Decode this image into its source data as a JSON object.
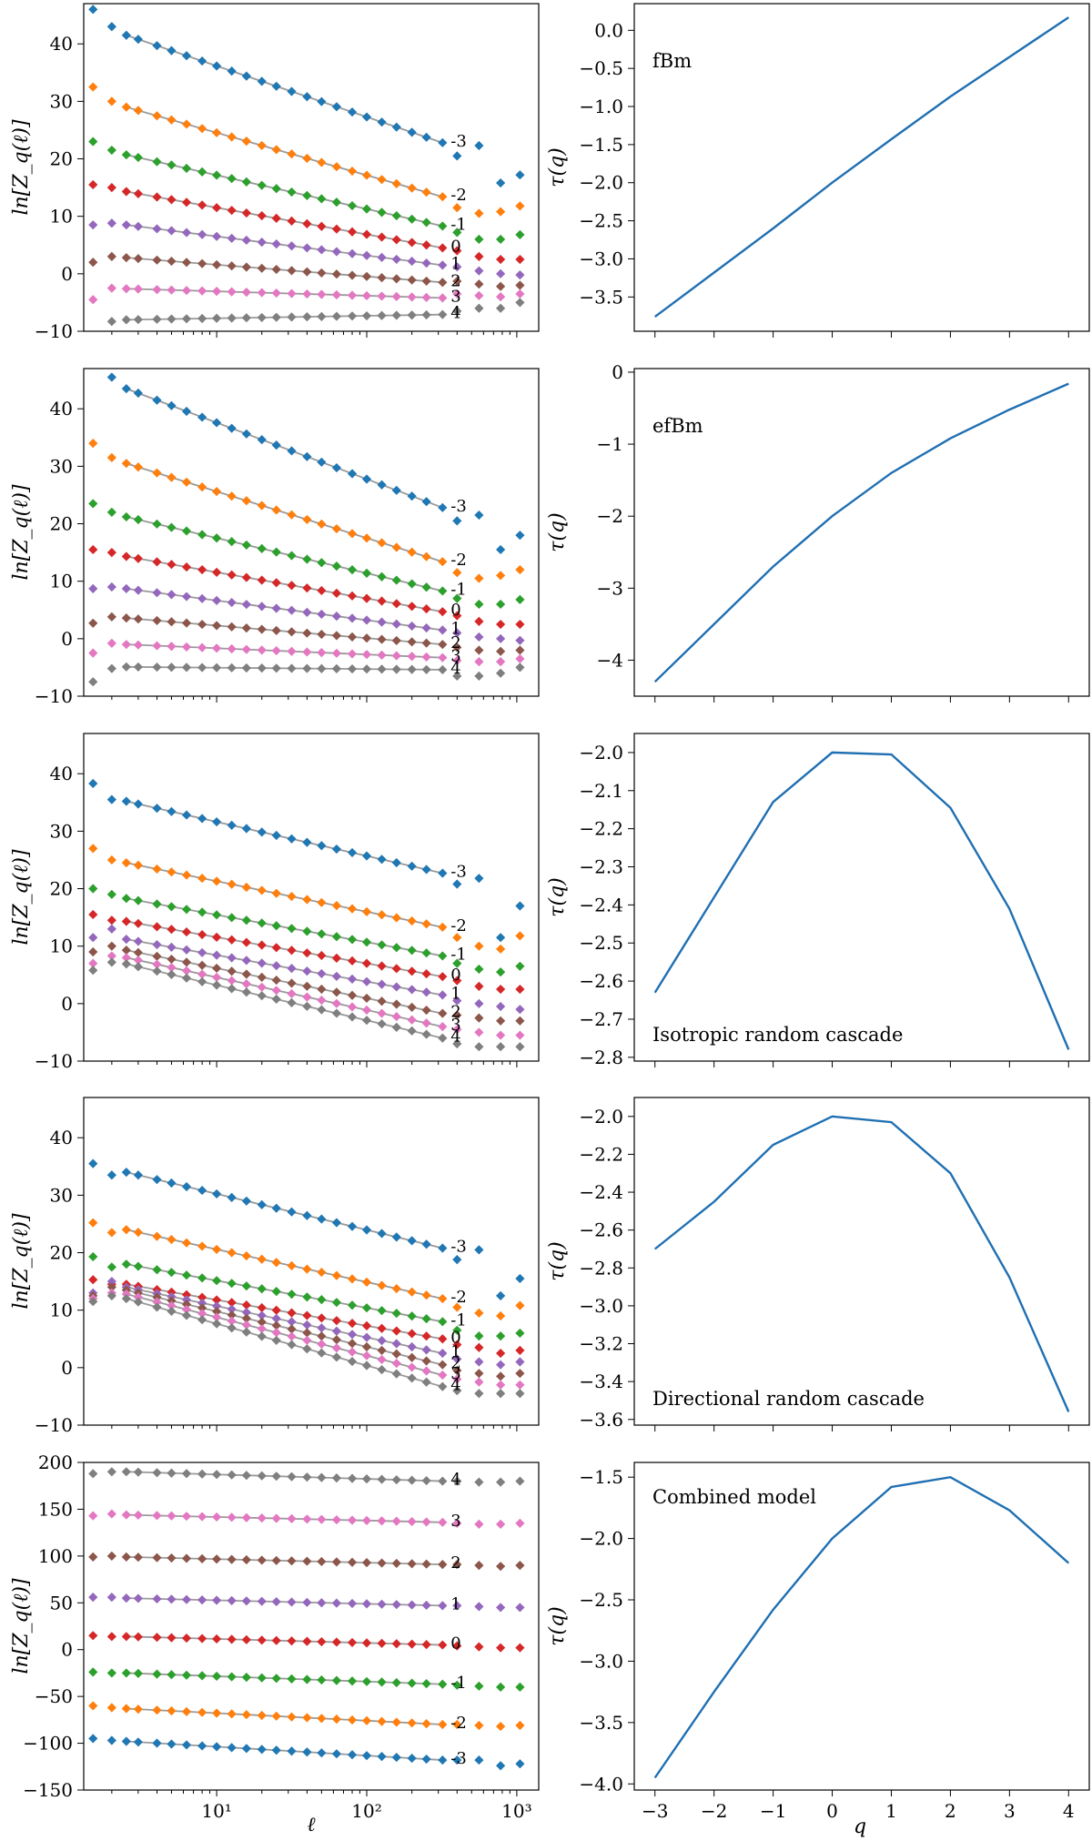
{
  "figure": {
    "x_label_left": "ℓ",
    "x_label_right": "q",
    "y_label_left": "ln[Z_q(ℓ)]",
    "y_label_right": "τ(q)"
  },
  "colors": {
    "series": [
      "#1f77b4",
      "#ff7f0e",
      "#2ca02c",
      "#d62728",
      "#9467bd",
      "#8c564b",
      "#e377c2",
      "#7f7f7f"
    ],
    "fit": "#999999",
    "line": "#1f6fb2"
  },
  "chart_data": [
    {
      "type": "scatter",
      "panel": "left-1",
      "xscale": "log",
      "xlim": [
        1.3,
        1400
      ],
      "ylim": [
        -10,
        47
      ],
      "yticks": [
        -10,
        0,
        10,
        20,
        30,
        40
      ],
      "ytick_labels": [
        "−10",
        "0",
        "10",
        "20",
        "30",
        "40"
      ],
      "xticks_shown": false,
      "fit_range": [
        2.5,
        320
      ],
      "q_values": [
        -3,
        -2,
        -1,
        0,
        1,
        2,
        3,
        4
      ],
      "q_labels": [
        "-3",
        "-2",
        "-1",
        "0",
        "1",
        "2",
        "3",
        "4"
      ],
      "series": [
        {
          "q": -3,
          "start": 46,
          "second": 43,
          "fit_start": 41.5,
          "fit_end": 22.8,
          "tail": [
            20.5,
            22.3,
            15.8,
            17.2
          ]
        },
        {
          "q": -2,
          "start": 32.5,
          "second": 30,
          "fit_start": 29,
          "fit_end": 13.4,
          "tail": [
            11.5,
            10.5,
            10.8,
            11.8
          ]
        },
        {
          "q": -1,
          "start": 23,
          "second": 21.5,
          "fit_start": 20.7,
          "fit_end": 8.3,
          "tail": [
            7.2,
            6.0,
            6.0,
            6.8
          ]
        },
        {
          "q": 0,
          "start": 15.5,
          "second": 15,
          "fit_start": 14.3,
          "fit_end": 4.5,
          "tail": [
            4.0,
            3.0,
            2.5,
            2.5
          ]
        },
        {
          "q": 1,
          "start": 8.5,
          "second": 8.8,
          "fit_start": 8.5,
          "fit_end": 1.5,
          "tail": [
            1.2,
            0.5,
            0.0,
            -0.2
          ]
        },
        {
          "q": 2,
          "start": 2,
          "second": 3,
          "fit_start": 2.8,
          "fit_end": -1.5,
          "tail": [
            -1.3,
            -1.8,
            -2.2,
            -2.0
          ]
        },
        {
          "q": 3,
          "start": -4.5,
          "second": -2.5,
          "fit_start": -2.6,
          "fit_end": -4.2,
          "tail": [
            -3.5,
            -3.8,
            -4.0,
            -3.5
          ]
        },
        {
          "q": 4,
          "start": null,
          "second": -8.3,
          "fit_start": -8.0,
          "fit_end": -7.1,
          "tail": [
            -6.5,
            -6.0,
            -6.0,
            -5.0
          ]
        }
      ]
    },
    {
      "type": "line",
      "panel": "right-1",
      "annotation": "fBm",
      "x": [
        -3,
        -2,
        -1,
        0,
        1,
        2,
        3,
        4
      ],
      "y": [
        -3.76,
        -3.18,
        -2.6,
        -2.0,
        -1.43,
        -0.87,
        -0.35,
        0.17
      ],
      "xlim": [
        -3.35,
        4.35
      ],
      "ylim": [
        -3.95,
        0.35
      ],
      "yticks": [
        -3.5,
        -3.0,
        -2.5,
        -2.0,
        -1.5,
        -1.0,
        -0.5,
        0.0
      ],
      "ytick_labels": [
        "−3.5",
        "−3.0",
        "−2.5",
        "−2.0",
        "−1.5",
        "−1.0",
        "−0.5",
        "0.0"
      ]
    },
    {
      "type": "scatter",
      "panel": "left-2",
      "xscale": "log",
      "xlim": [
        1.3,
        1400
      ],
      "ylim": [
        -10,
        47
      ],
      "yticks": [
        -10,
        0,
        10,
        20,
        30,
        40
      ],
      "ytick_labels": [
        "−10",
        "0",
        "10",
        "20",
        "30",
        "40"
      ],
      "xticks_shown": false,
      "fit_range": [
        2.5,
        320
      ],
      "q_values": [
        -3,
        -2,
        -1,
        0,
        1,
        2,
        3,
        4
      ],
      "q_labels": [
        "-3",
        "-2",
        "-1",
        "0",
        "1",
        "2",
        "3",
        "4"
      ],
      "series": [
        {
          "q": -3,
          "start": null,
          "second": 45.5,
          "fit_start": 43.5,
          "fit_end": 22.8,
          "tail": [
            20.5,
            21.5,
            15.5,
            18.0
          ]
        },
        {
          "q": -2,
          "start": 34,
          "second": 31.5,
          "fit_start": 30.5,
          "fit_end": 13.4,
          "tail": [
            11.5,
            10.5,
            11.0,
            12.0
          ]
        },
        {
          "q": -1,
          "start": 23.5,
          "second": 22,
          "fit_start": 21.2,
          "fit_end": 8.3,
          "tail": [
            7.0,
            6.0,
            6.0,
            6.8
          ]
        },
        {
          "q": 0,
          "start": 15.5,
          "second": 15,
          "fit_start": 14.3,
          "fit_end": 4.7,
          "tail": [
            4.0,
            3.0,
            2.5,
            2.5
          ]
        },
        {
          "q": 1,
          "start": 8.7,
          "second": 9,
          "fit_start": 8.7,
          "fit_end": 1.5,
          "tail": [
            1.0,
            0.3,
            0.0,
            -0.3
          ]
        },
        {
          "q": 2,
          "start": 2.7,
          "second": 3.8,
          "fit_start": 3.6,
          "fit_end": -1.0,
          "tail": [
            -1.5,
            -2.0,
            -2.2,
            -2.0
          ]
        },
        {
          "q": 3,
          "start": -2.5,
          "second": -0.8,
          "fit_start": -1.0,
          "fit_end": -3.3,
          "tail": [
            -3.8,
            -4.0,
            -4.0,
            -3.5
          ]
        },
        {
          "q": 4,
          "start": -7.5,
          "second": -5.2,
          "fit_start": -4.9,
          "fit_end": -5.4,
          "tail": [
            -6.5,
            -6.5,
            -6.0,
            -5.0
          ]
        }
      ]
    },
    {
      "type": "line",
      "panel": "right-2",
      "annotation": "efBm",
      "x": [
        -3,
        -2,
        -1,
        0,
        1,
        2,
        3,
        4
      ],
      "y": [
        -4.3,
        -3.5,
        -2.7,
        -2.0,
        -1.4,
        -0.92,
        -0.52,
        -0.16
      ],
      "xlim": [
        -3.35,
        4.35
      ],
      "ylim": [
        -4.5,
        0.05
      ],
      "yticks": [
        -4,
        -3,
        -2,
        -1,
        0
      ],
      "ytick_labels": [
        "−4",
        "−3",
        "−2",
        "−1",
        "0"
      ]
    },
    {
      "type": "scatter",
      "panel": "left-3",
      "xscale": "log",
      "xlim": [
        1.3,
        1400
      ],
      "ylim": [
        -10,
        47
      ],
      "yticks": [
        -10,
        0,
        10,
        20,
        30,
        40
      ],
      "ytick_labels": [
        "−10",
        "0",
        "10",
        "20",
        "30",
        "40"
      ],
      "xticks_shown": false,
      "fit_range": [
        2.5,
        320
      ],
      "q_values": [
        -3,
        -2,
        -1,
        0,
        1,
        2,
        3,
        4
      ],
      "q_labels": [
        "-3",
        "-2",
        "-1",
        "0",
        "1",
        "2",
        "3",
        "4"
      ],
      "series": [
        {
          "q": -3,
          "start": 38.3,
          "second": 35.5,
          "fit_start": 35.2,
          "fit_end": 22.7,
          "tail": [
            20.8,
            21.8,
            11.5,
            17.0
          ]
        },
        {
          "q": -2,
          "start": 27,
          "second": 25,
          "fit_start": 24.5,
          "fit_end": 13.3,
          "tail": [
            11.5,
            10.0,
            9.5,
            11.8
          ]
        },
        {
          "q": -1,
          "start": 20,
          "second": 19,
          "fit_start": 18.3,
          "fit_end": 8.3,
          "tail": [
            7.0,
            6.0,
            5.5,
            6.5
          ]
        },
        {
          "q": 0,
          "start": 15.5,
          "second": 14.5,
          "fit_start": 14.3,
          "fit_end": 4.7,
          "tail": [
            4.0,
            3.0,
            2.5,
            2.5
          ]
        },
        {
          "q": 1,
          "start": 11.5,
          "second": 13,
          "fit_start": 11.2,
          "fit_end": 1.5,
          "tail": [
            0.5,
            0.0,
            -0.5,
            -1.0
          ]
        },
        {
          "q": 2,
          "start": 9,
          "second": 10,
          "fit_start": 9.3,
          "fit_end": -1.7,
          "tail": [
            -2.0,
            -2.5,
            -3.0,
            -3.0
          ]
        },
        {
          "q": 3,
          "start": 7,
          "second": 8.3,
          "fit_start": 8.0,
          "fit_end": -4.0,
          "tail": [
            -4.5,
            -5.0,
            -5.5,
            -5.5
          ]
        },
        {
          "q": 4,
          "start": 5.8,
          "second": 7.2,
          "fit_start": 6.9,
          "fit_end": -6.0,
          "tail": [
            -7.0,
            -7.5,
            -7.5,
            -7.5
          ]
        }
      ]
    },
    {
      "type": "line",
      "panel": "right-3",
      "annotation": "Isotropic random cascade",
      "x": [
        -3,
        -2,
        -1,
        0,
        1,
        2,
        3,
        4
      ],
      "y": [
        -2.63,
        -2.38,
        -2.13,
        -2.0,
        -2.005,
        -2.145,
        -2.41,
        -2.78
      ],
      "xlim": [
        -3.35,
        4.35
      ],
      "ylim": [
        -2.81,
        -1.95
      ],
      "yticks": [
        -2.8,
        -2.7,
        -2.6,
        -2.5,
        -2.4,
        -2.3,
        -2.2,
        -2.1,
        -2.0
      ],
      "ytick_labels": [
        "−2.8",
        "−2.7",
        "−2.6",
        "−2.5",
        "−2.4",
        "−2.3",
        "−2.2",
        "−2.1",
        "−2.0"
      ]
    },
    {
      "type": "scatter",
      "panel": "left-4",
      "xscale": "log",
      "xlim": [
        1.3,
        1400
      ],
      "ylim": [
        -10,
        47
      ],
      "yticks": [
        -10,
        0,
        10,
        20,
        30,
        40
      ],
      "ytick_labels": [
        "−10",
        "0",
        "10",
        "20",
        "30",
        "40"
      ],
      "xticks_shown": false,
      "fit_range": [
        2.5,
        320
      ],
      "q_values": [
        -3,
        -2,
        -1,
        0,
        1,
        2,
        3,
        4
      ],
      "q_labels": [
        "-3",
        "-2",
        "-1",
        "0",
        "1",
        "2",
        "3",
        "4"
      ],
      "series": [
        {
          "q": -3,
          "start": 35.5,
          "second": 33.5,
          "fit_start": 34.0,
          "fit_end": 20.8,
          "tail": [
            18.8,
            20.5,
            12.5,
            15.5
          ]
        },
        {
          "q": -2,
          "start": 25.2,
          "second": 23.5,
          "fit_start": 24.0,
          "fit_end": 12.0,
          "tail": [
            10.5,
            9.5,
            9.0,
            10.8
          ]
        },
        {
          "q": -1,
          "start": 19.3,
          "second": 17.5,
          "fit_start": 18.0,
          "fit_end": 8.0,
          "tail": [
            6.5,
            5.5,
            5.5,
            6.0
          ]
        },
        {
          "q": 0,
          "start": 15.3,
          "second": 14.5,
          "fit_start": 14.5,
          "fit_end": 5.0,
          "tail": [
            4.0,
            3.5,
            2.5,
            3.0
          ]
        },
        {
          "q": 1,
          "start": 13,
          "second": 15,
          "fit_start": 14.0,
          "fit_end": 2.5,
          "tail": [
            1.5,
            1.0,
            0.5,
            1.0
          ]
        },
        {
          "q": 2,
          "start": 12.5,
          "second": 14,
          "fit_start": 13.5,
          "fit_end": 0.5,
          "tail": [
            -0.5,
            -1.0,
            -1.5,
            -1.0
          ]
        },
        {
          "q": 3,
          "start": 12,
          "second": 13,
          "fit_start": 12.8,
          "fit_end": -1.3,
          "tail": [
            -2.0,
            -2.5,
            -3.0,
            -3.0
          ]
        },
        {
          "q": 4,
          "start": 11.5,
          "second": 12.5,
          "fit_start": 12.0,
          "fit_end": -3.3,
          "tail": [
            -4.0,
            -4.5,
            -4.5,
            -4.5
          ]
        }
      ]
    },
    {
      "type": "line",
      "panel": "right-4",
      "annotation": "Directional random cascade",
      "x": [
        -3,
        -2,
        -1,
        0,
        1,
        2,
        3,
        4
      ],
      "y": [
        -2.7,
        -2.45,
        -2.15,
        -2.0,
        -2.03,
        -2.3,
        -2.85,
        -3.56
      ],
      "xlim": [
        -3.35,
        4.35
      ],
      "ylim": [
        -3.63,
        -1.9
      ],
      "yticks": [
        -3.6,
        -3.4,
        -3.2,
        -3.0,
        -2.8,
        -2.6,
        -2.4,
        -2.2,
        -2.0
      ],
      "ytick_labels": [
        "−3.6",
        "−3.4",
        "−3.2",
        "−3.0",
        "−2.8",
        "−2.6",
        "−2.4",
        "−2.2",
        "−2.0"
      ]
    },
    {
      "type": "scatter",
      "panel": "left-5",
      "xscale": "log",
      "xlim": [
        1.3,
        1400
      ],
      "ylim": [
        -150,
        200
      ],
      "yticks": [
        -150,
        -100,
        -50,
        0,
        50,
        100,
        150,
        200
      ],
      "ytick_labels": [
        "−150",
        "−100",
        "−50",
        "0",
        "50",
        "100",
        "150",
        "200"
      ],
      "xticks_shown": true,
      "xticks": [
        10,
        100,
        1000
      ],
      "xtick_labels": [
        "10¹",
        "10²",
        "10³"
      ],
      "fit_range": [
        2.5,
        320
      ],
      "q_values": [
        -3,
        -2,
        -1,
        0,
        1,
        2,
        3,
        4
      ],
      "q_labels": [
        "-3",
        "-2",
        "-1",
        "0",
        "1",
        "2",
        "3",
        "4"
      ],
      "series": [
        {
          "q": -3,
          "start": -95,
          "second": -97,
          "fit_start": -98,
          "fit_end": -118,
          "tail": [
            -118,
            -118,
            -124,
            -122
          ]
        },
        {
          "q": -2,
          "start": -60,
          "second": -62,
          "fit_start": -63,
          "fit_end": -80,
          "tail": [
            -80,
            -81,
            -82,
            -81
          ]
        },
        {
          "q": -1,
          "start": -24,
          "second": -25,
          "fit_start": -25,
          "fit_end": -37,
          "tail": [
            -38,
            -39,
            -40,
            -40
          ]
        },
        {
          "q": 0,
          "start": 15,
          "second": 14,
          "fit_start": 14,
          "fit_end": 5,
          "tail": [
            4,
            3,
            2,
            2
          ]
        },
        {
          "q": 1,
          "start": 56,
          "second": 56,
          "fit_start": 55,
          "fit_end": 47,
          "tail": [
            47,
            46,
            45,
            45
          ]
        },
        {
          "q": 2,
          "start": 99,
          "second": 100,
          "fit_start": 99,
          "fit_end": 91,
          "tail": [
            91,
            90,
            89,
            90
          ]
        },
        {
          "q": 3,
          "start": 143,
          "second": 145,
          "fit_start": 144,
          "fit_end": 136,
          "tail": [
            135,
            134,
            134,
            135
          ]
        },
        {
          "q": 4,
          "start": 188,
          "second": 190,
          "fit_start": 190,
          "fit_end": 180,
          "tail": [
            180,
            179,
            179,
            180
          ]
        }
      ]
    },
    {
      "type": "line",
      "panel": "right-5",
      "annotation": "Combined model",
      "x": [
        -3,
        -2,
        -1,
        0,
        1,
        2,
        3,
        4
      ],
      "y": [
        -3.95,
        -3.25,
        -2.58,
        -2.0,
        -1.58,
        -1.5,
        -1.77,
        -2.2
      ],
      "xlim": [
        -3.35,
        4.35
      ],
      "ylim": [
        -4.05,
        -1.38
      ],
      "yticks": [
        -4.0,
        -3.5,
        -3.0,
        -2.5,
        -2.0,
        -1.5
      ],
      "ytick_labels": [
        "−4.0",
        "−3.5",
        "−3.0",
        "−2.5",
        "−2.0",
        "−1.5"
      ],
      "xticks_shown": true,
      "xticks": [
        -3,
        -2,
        -1,
        0,
        1,
        2,
        3,
        4
      ],
      "xtick_labels": [
        "−3",
        "−2",
        "−1",
        "0",
        "1",
        "2",
        "3",
        "4"
      ]
    }
  ]
}
